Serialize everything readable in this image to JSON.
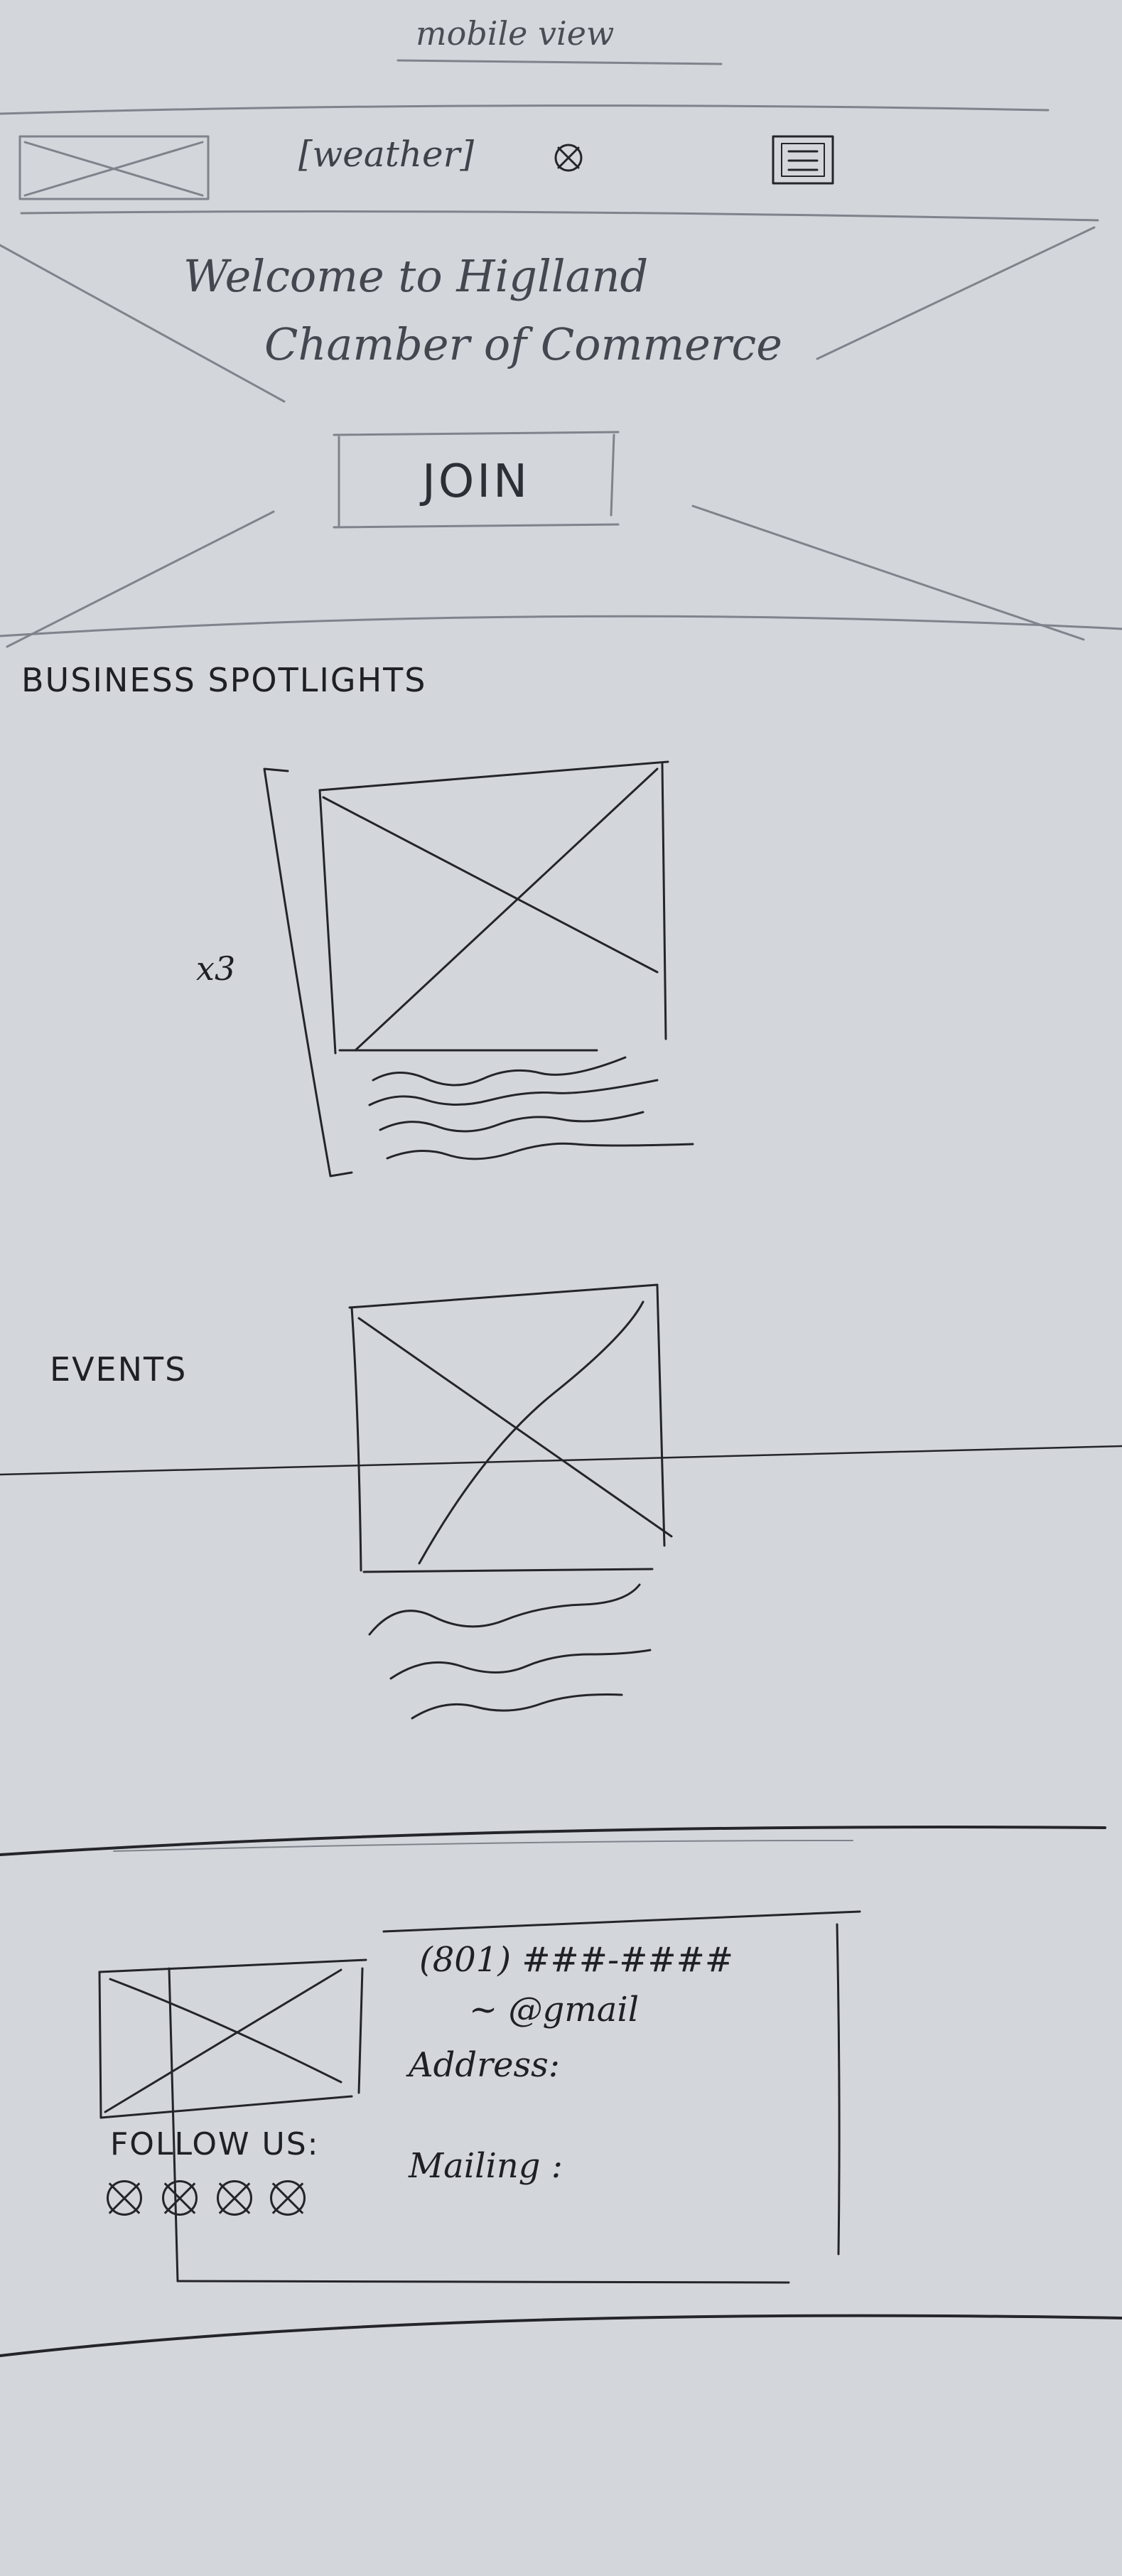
{
  "page_title": "mobile view",
  "header": {
    "weather_label": "[weather]",
    "logo_icon": "image-placeholder-icon",
    "weather_icon": "crossed-circle-icon",
    "menu_icon": "hamburger-menu-icon"
  },
  "hero": {
    "welcome_line1": "Welcome to Higlland",
    "welcome_line2": "Chamber of Commerce",
    "join_label": "JOIN"
  },
  "business_spotlights": {
    "heading": "BUSINESS SPOTLIGHTS",
    "count_label": "x3"
  },
  "events": {
    "heading": "EVENTS"
  },
  "footer": {
    "phone": "(801) ###-####",
    "email": "~ @gmail",
    "address_label": "Address:",
    "mailing_label": "Mailing :",
    "follow_label": "FOLLOW US:",
    "social_icons": [
      "crossed-circle-icon",
      "crossed-circle-icon",
      "crossed-circle-icon",
      "crossed-circle-icon"
    ]
  },
  "colors": {
    "paper": "#d3d6db",
    "ink": "#24252b",
    "pencil": "#7f838b"
  }
}
